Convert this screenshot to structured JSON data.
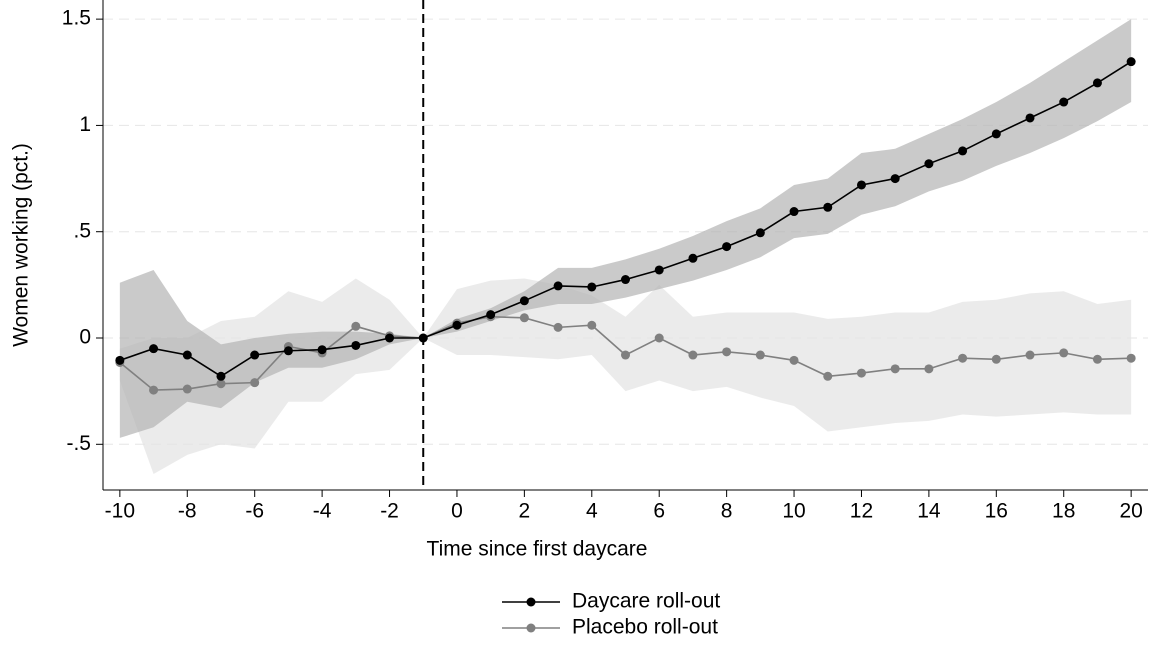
{
  "chart_data": {
    "type": "line",
    "xlabel": "Time since first daycare",
    "ylabel": "Women working (pct.)",
    "x": [
      -10,
      -9,
      -8,
      -7,
      -6,
      -5,
      -4,
      -3,
      -2,
      -1,
      0,
      1,
      2,
      3,
      4,
      5,
      6,
      7,
      8,
      9,
      10,
      11,
      12,
      13,
      14,
      15,
      16,
      17,
      18,
      19,
      20
    ],
    "xlim": [
      -10.5,
      20.5
    ],
    "xticks": [
      -10,
      -8,
      -6,
      -4,
      -2,
      0,
      2,
      4,
      6,
      8,
      10,
      12,
      14,
      16,
      18,
      20
    ],
    "ylim": [
      -0.715,
      1.59
    ],
    "yticks": [
      {
        "value": -0.5,
        "label": "-.5"
      },
      0,
      {
        "value": 0.5,
        "label": ".5"
      },
      1,
      1.5
    ],
    "grid": true,
    "vline": -1,
    "legend": "bottom",
    "series": [
      {
        "name": "Placebo roll-out",
        "color": "#808080",
        "band_color": "#e3e3e3",
        "values": [
          -0.115,
          -0.245,
          -0.24,
          -0.215,
          -0.21,
          -0.04,
          -0.07,
          0.055,
          0.01,
          0,
          0.07,
          0.1,
          0.095,
          0.05,
          0.06,
          -0.08,
          0,
          -0.08,
          -0.065,
          -0.08,
          -0.105,
          -0.18,
          -0.165,
          -0.145,
          -0.145,
          -0.095,
          -0.1,
          -0.08,
          -0.07,
          -0.1,
          -0.095
        ],
        "upper": [
          -0.05,
          0,
          0,
          0.08,
          0.1,
          0.22,
          0.17,
          0.28,
          0.18,
          0,
          0.23,
          0.27,
          0.28,
          0.25,
          0.2,
          0.1,
          0.25,
          0.1,
          0.12,
          0.12,
          0.12,
          0.09,
          0.1,
          0.12,
          0.12,
          0.17,
          0.18,
          0.21,
          0.22,
          0.16,
          0.18
        ],
        "lower": [
          -0.2,
          -0.64,
          -0.55,
          -0.5,
          -0.52,
          -0.3,
          -0.3,
          -0.17,
          -0.15,
          0,
          -0.08,
          -0.08,
          -0.09,
          -0.1,
          -0.08,
          -0.25,
          -0.2,
          -0.25,
          -0.23,
          -0.28,
          -0.32,
          -0.44,
          -0.42,
          -0.4,
          -0.39,
          -0.36,
          -0.37,
          -0.36,
          -0.35,
          -0.36,
          -0.36
        ]
      },
      {
        "name": "Daycare roll-out",
        "color": "#000000",
        "band_color": "#b4b4b4",
        "values": [
          -0.105,
          -0.05,
          -0.08,
          -0.18,
          -0.08,
          -0.06,
          -0.055,
          -0.035,
          0,
          0,
          0.06,
          0.11,
          0.175,
          0.245,
          0.24,
          0.275,
          0.32,
          0.375,
          0.43,
          0.495,
          0.595,
          0.615,
          0.72,
          0.75,
          0.82,
          0.88,
          0.96,
          1.035,
          1.11,
          1.2,
          1.3
        ],
        "upper": [
          0.26,
          0.32,
          0.08,
          -0.03,
          0,
          0.02,
          0.03,
          0.03,
          0.02,
          0,
          0.09,
          0.14,
          0.22,
          0.33,
          0.33,
          0.37,
          0.42,
          0.48,
          0.55,
          0.61,
          0.72,
          0.75,
          0.87,
          0.89,
          0.96,
          1.03,
          1.11,
          1.2,
          1.3,
          1.4,
          1.5
        ],
        "lower": [
          -0.47,
          -0.42,
          -0.3,
          -0.33,
          -0.21,
          -0.14,
          -0.14,
          -0.1,
          -0.03,
          0,
          0.03,
          0.08,
          0.13,
          0.16,
          0.16,
          0.19,
          0.23,
          0.27,
          0.32,
          0.38,
          0.47,
          0.49,
          0.58,
          0.62,
          0.69,
          0.74,
          0.81,
          0.87,
          0.94,
          1.02,
          1.11
        ]
      }
    ]
  }
}
